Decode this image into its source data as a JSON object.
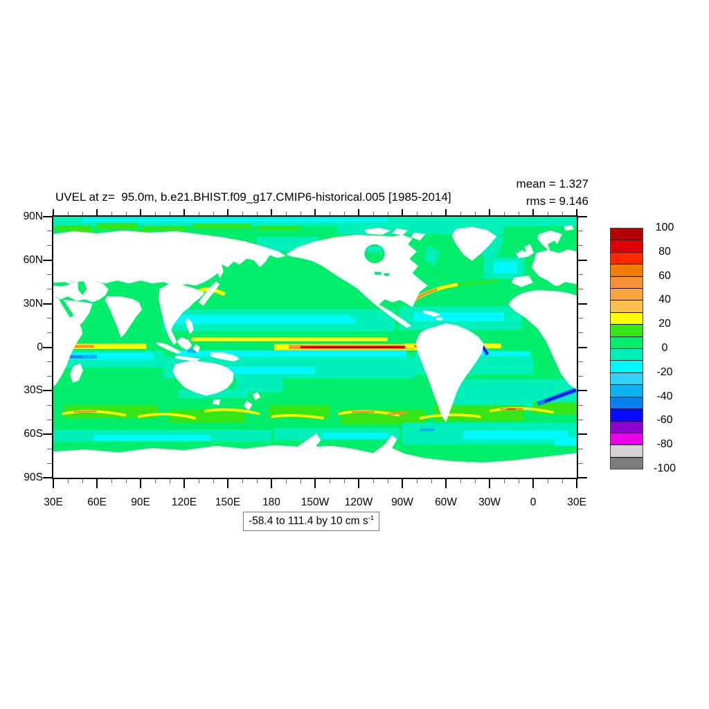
{
  "header": {
    "title": "UVEL at z=  95.0m, b.e21.BHIST.f09_g17.CMIP6-historical.005 [1985-2014]",
    "mean_label": "mean = 1.327",
    "rms_label": "rms = 9.146"
  },
  "footer": {
    "range_text": "-58.4 to 111.4 by 10 cm s",
    "exponent": "-1"
  },
  "axes": {
    "y_tick_labels": [
      "90N",
      "60N",
      "30N",
      "0",
      "30S",
      "60S",
      "90S"
    ],
    "x_tick_labels": [
      "30E",
      "60E",
      "90E",
      "120E",
      "150E",
      "180",
      "150W",
      "120W",
      "90W",
      "60W",
      "30W",
      "0",
      "30E"
    ],
    "minor_ticks_per_major_interval": 2
  },
  "colorbar": {
    "tick_labels": [
      "100",
      "80",
      "60",
      "40",
      "20",
      "0",
      "-20",
      "-40",
      "-60",
      "-80",
      "-100"
    ],
    "colors": [
      "#b40000",
      "#de0000",
      "#ff2600",
      "#ef7d00",
      "#f79133",
      "#faa43e",
      "#fdc14b",
      "#ffff00",
      "#36e516",
      "#00ee6b",
      "#00f0b9",
      "#00f9ff",
      "#2fd3f8",
      "#0fb2f1",
      "#0881ee",
      "#0a0afa",
      "#8f00d0",
      "#ea00ea",
      "#d3d3d3",
      "#7d7d7d"
    ]
  },
  "chart_data": {
    "type": "heatmap",
    "title": "UVEL at z=  95.0m, b.e21.BHIST.f09_g17.CMIP6-historical.005 [1985-2014]",
    "variable": "UVEL",
    "depth_m": 95.0,
    "units": "cm s-1",
    "mean": 1.327,
    "rms": 9.146,
    "data_min": -58.4,
    "data_max": 111.4,
    "contour_interval": 10,
    "projection": "global cylindrical equidistant map, longitude 30E eastward around to 30E, latitude 90N to 90S",
    "x_ticks": [
      "30E",
      "60E",
      "90E",
      "120E",
      "150E",
      "180",
      "150W",
      "120W",
      "90W",
      "60W",
      "30W",
      "0",
      "30E"
    ],
    "y_ticks": [
      "90N",
      "60N",
      "30N",
      "0",
      "30S",
      "60S",
      "90S"
    ],
    "levels": [
      100,
      90,
      80,
      70,
      60,
      50,
      40,
      30,
      20,
      10,
      0,
      -10,
      -20,
      -30,
      -40,
      -50,
      -60,
      -70,
      -80,
      -90,
      -100
    ],
    "palette_top_to_bottom": [
      "#b40000",
      "#de0000",
      "#ff2600",
      "#ef7d00",
      "#f79133",
      "#faa43e",
      "#fdc14b",
      "#ffff00",
      "#36e516",
      "#00ee6b",
      "#00f0b9",
      "#00f9ff",
      "#2fd3f8",
      "#0fb2f1",
      "#0881ee",
      "#0a0afa",
      "#8f00d0",
      "#ea00ea",
      "#d3d3d3",
      "#7d7d7d"
    ],
    "legend_position": "right vertical labelbar",
    "notable_features": [
      "ocean mostly 0-10 cm/s green with 0 to -10 turquoise and -10 to -20 cyan gyre bands",
      "dark red eastward Equatorial Undercurrent core in central/eastern Pacific near the equator",
      "yellow-orange equatorial jets in the Indian and Atlantic oceans",
      "orange Kuroshio and Gulf Stream western boundary current streaks",
      "yellow/orange Antarctic Circumpolar Current filaments near 50S",
      "blue westward flows: Agulhas retroflection, North Brazil Current, south equatorial Indian Ocean",
      "continents and Antarctica shown in white"
    ]
  }
}
